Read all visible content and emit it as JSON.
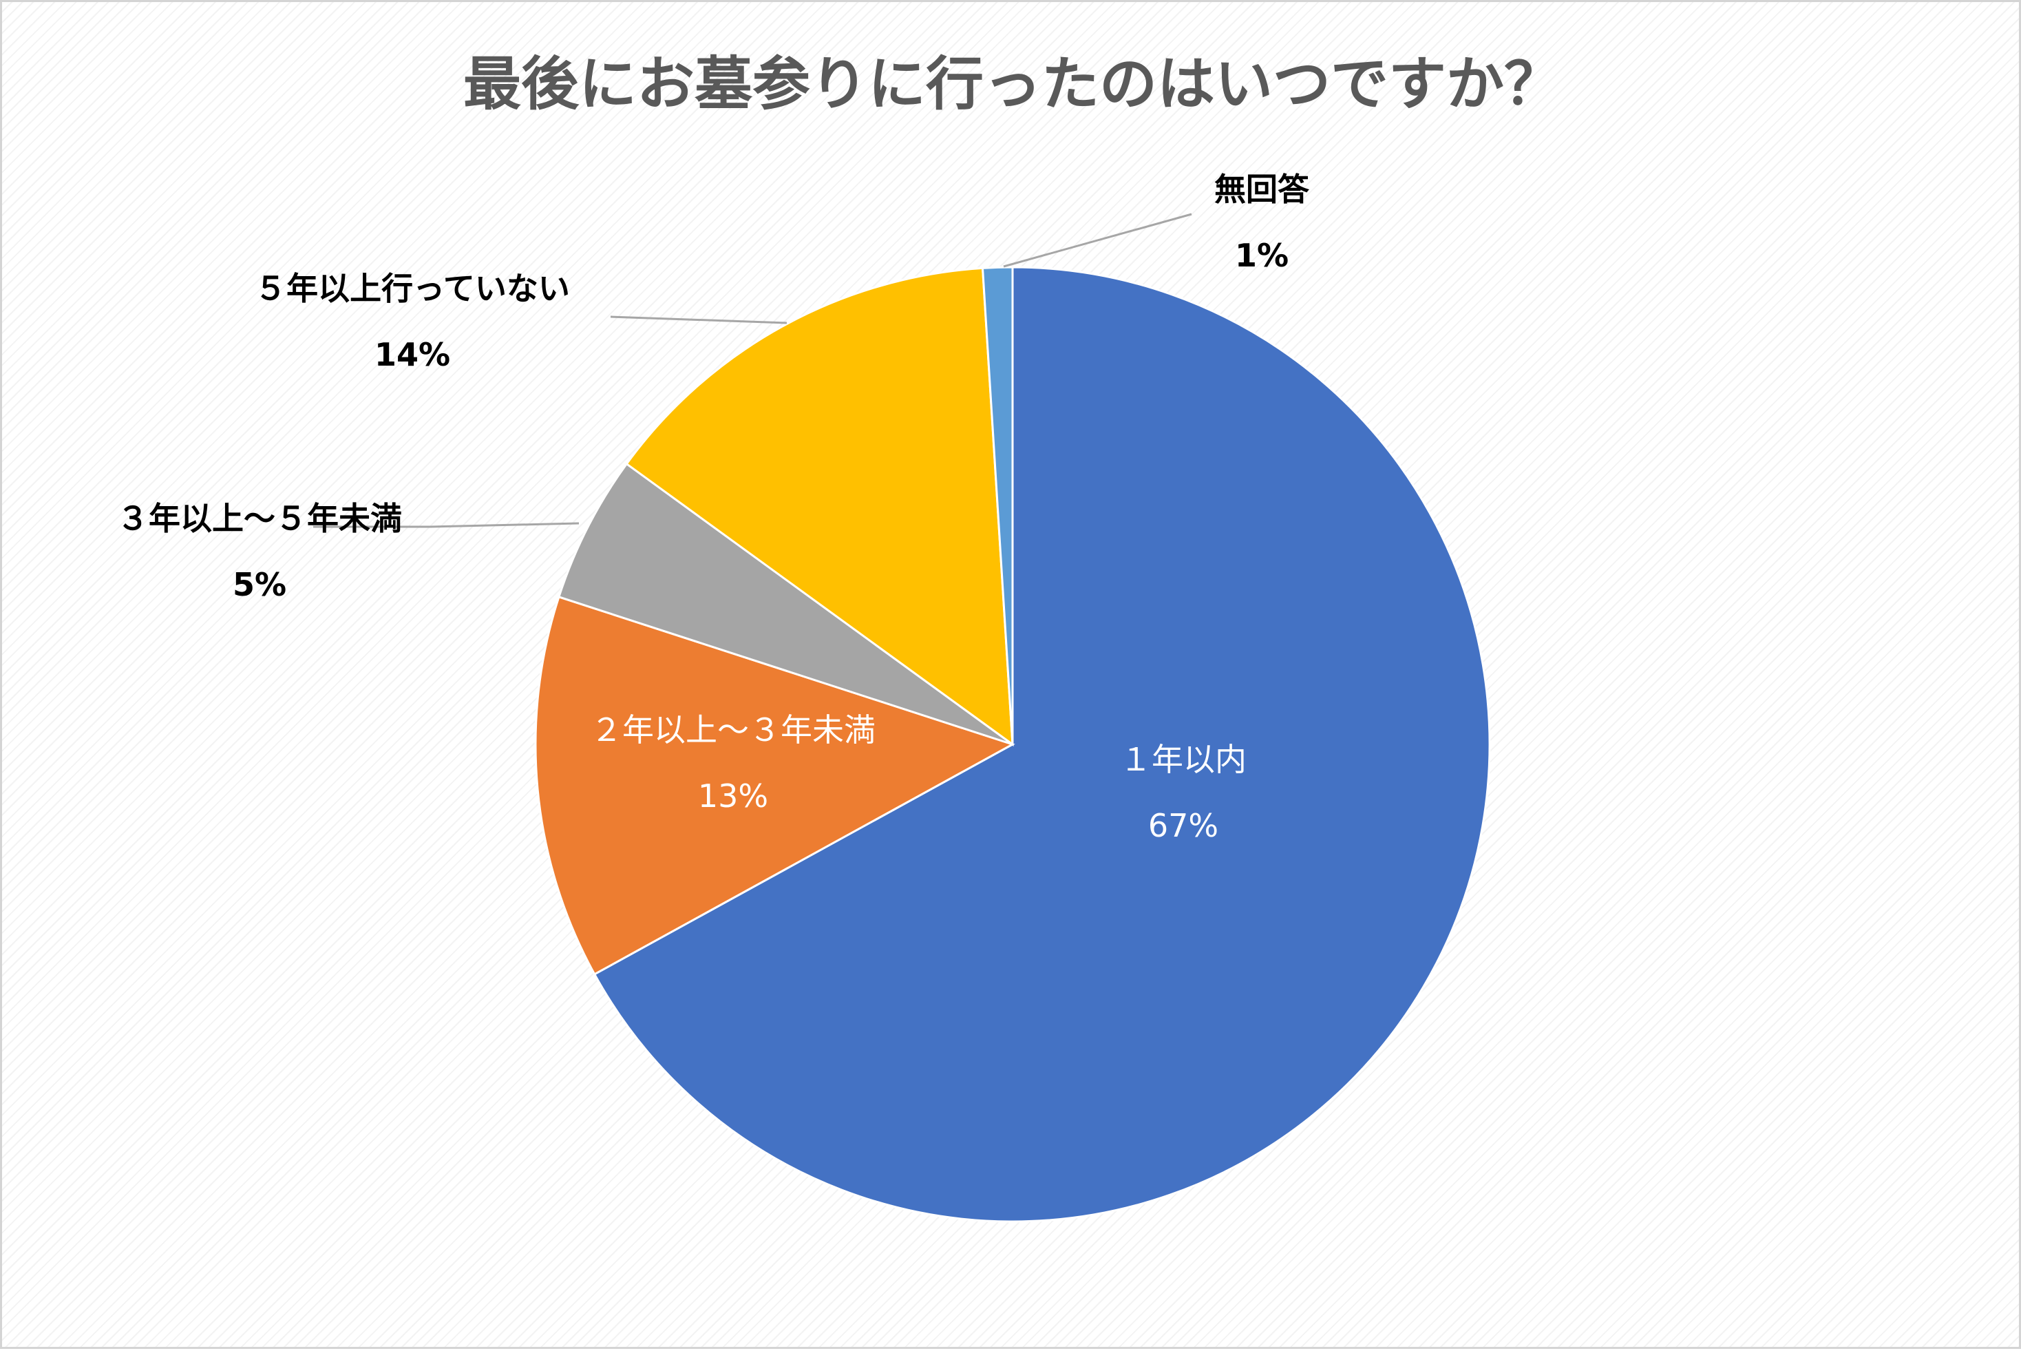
{
  "chart_data": {
    "type": "pie",
    "title": "最後にお墓参りに行ったのはいつですか？",
    "start_angle_deg": 0,
    "direction": "clockwise",
    "slices": [
      {
        "key": "within1",
        "label": "１年以内",
        "value": 67,
        "value_label": "67%",
        "color": "#4472C4",
        "label_position": "inside"
      },
      {
        "key": "y2to3",
        "label": "２年以上～３年未満",
        "value": 13,
        "value_label": "13%",
        "color": "#ED7D31",
        "label_position": "inside"
      },
      {
        "key": "y3to5",
        "label": "３年以上～５年未満",
        "value": 5,
        "value_label": "5%",
        "color": "#A5A5A5",
        "label_position": "outside"
      },
      {
        "key": "over5",
        "label": "５年以上行っていない",
        "value": 14,
        "value_label": "14%",
        "color": "#FFC000",
        "label_position": "outside"
      },
      {
        "key": "noans",
        "label": "無回答",
        "value": 1,
        "value_label": "1%",
        "color": "#5B9BD5",
        "label_position": "outside"
      }
    ],
    "legend": "none"
  }
}
